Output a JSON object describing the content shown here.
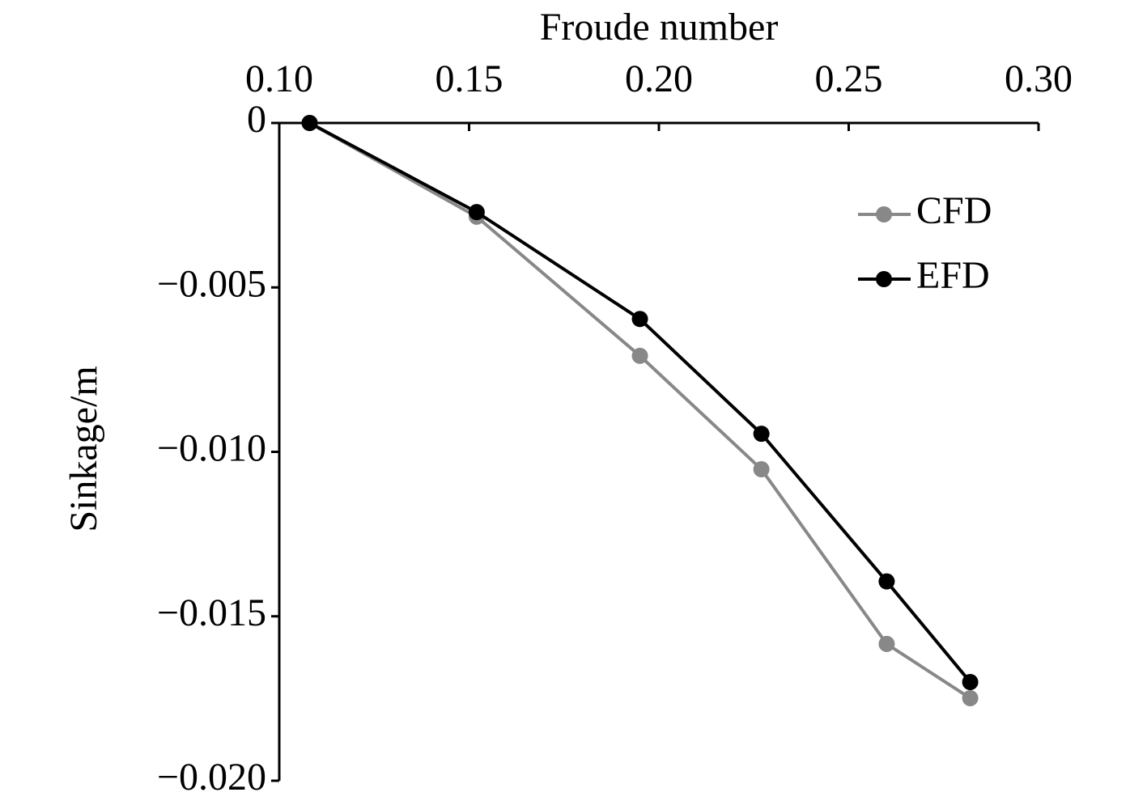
{
  "chart_data": {
    "type": "line",
    "x_label": "Froude number",
    "y_label": "Sinkage/m",
    "x": [
      0.108,
      0.152,
      0.195,
      0.227,
      0.26,
      0.282
    ],
    "series": [
      {
        "name": "CFD",
        "color": "#888888",
        "values": [
          0,
          -0.00285,
          -0.00708,
          -0.01053,
          -0.01584,
          -0.01749
        ]
      },
      {
        "name": "EFD",
        "color": "#000000",
        "values": [
          0,
          -0.00271,
          -0.00596,
          -0.00945,
          -0.01394,
          -0.017
        ]
      }
    ],
    "xlim": [
      0.1,
      0.3
    ],
    "xticks": [
      {
        "value": 0.1,
        "label": "0.10"
      },
      {
        "value": 0.15,
        "label": "0.15"
      },
      {
        "value": 0.2,
        "label": "0.20"
      },
      {
        "value": 0.25,
        "label": "0.25"
      },
      {
        "value": 0.3,
        "label": "0.30"
      }
    ],
    "ylim": [
      -0.02,
      0
    ],
    "yticks": [
      0,
      {
        "value": -0.005,
        "label": "−0.005"
      },
      {
        "value": -0.01,
        "label": "−0.010"
      },
      {
        "value": -0.015,
        "label": "−0.015"
      },
      {
        "value": -0.02,
        "label": "−0.020"
      }
    ],
    "grid": false,
    "legend": "upper-right"
  }
}
